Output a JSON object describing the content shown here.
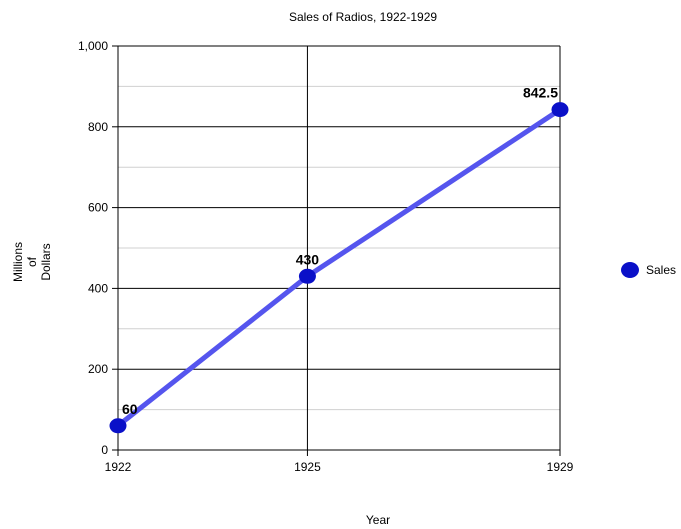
{
  "chart_data": {
    "type": "line",
    "title": "Sales of Radios, 1922-1929",
    "xlabel": "Year",
    "ylabel": [
      "Millions",
      "of",
      "Dollars"
    ],
    "categories": [
      "1922",
      "1925",
      "1929"
    ],
    "x": [
      1922,
      1925,
      1929
    ],
    "series": [
      {
        "name": "Sales",
        "values": [
          60,
          430,
          842.5
        ],
        "labels": [
          "60",
          "430",
          "842.5"
        ],
        "color": "#5555ee",
        "marker_color": "#0a10c8"
      }
    ],
    "yticks": [
      0,
      200,
      400,
      600,
      800,
      1000
    ],
    "ytick_labels": [
      "0",
      "200",
      "400",
      "600",
      "800",
      "1,000"
    ],
    "ylim": [
      0,
      1000
    ],
    "xlim": [
      1922,
      1929
    ],
    "grid": true,
    "legend_position": "right"
  }
}
